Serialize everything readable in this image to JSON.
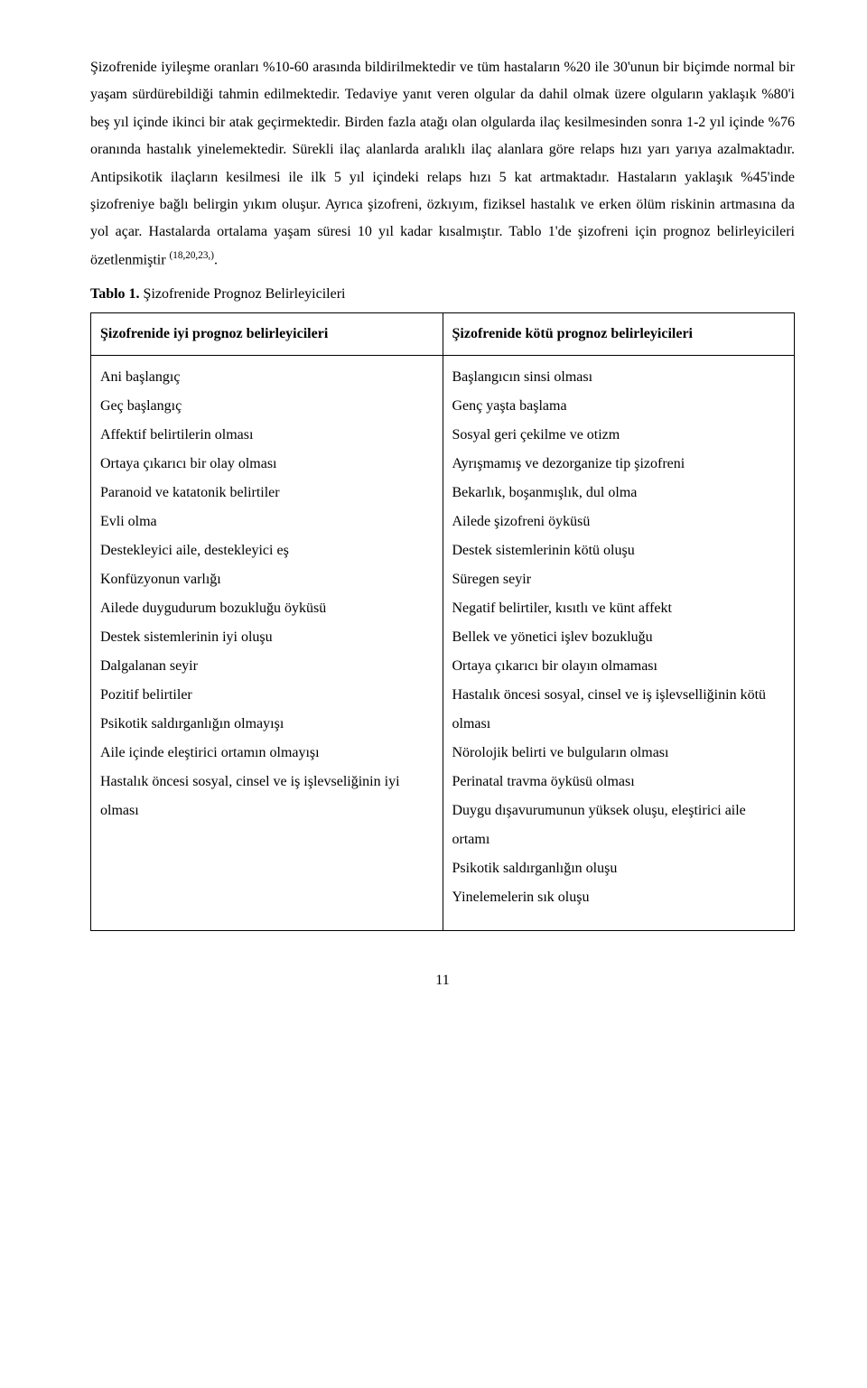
{
  "paragraph": {
    "text_parts": [
      "Şizofrenide iyileşme oranları %10-60 arasında bildirilmektedir ve tüm hastaların %20 ile 30'unun bir biçimde normal bir yaşam sürdürebildiği tahmin edilmektedir. Tedaviye yanıt veren olgular da dahil olmak üzere olguların yaklaşık %80'i beş yıl içinde ikinci bir atak geçirmektedir. Birden fazla atağı olan olgularda ilaç kesilmesinden sonra 1-2 yıl içinde %76 oranında hastalık yinelemektedir. Sürekli ilaç alanlarda aralıklı ilaç alanlara göre relaps hızı yarı yarıya azalmaktadır. Antipsikotik ilaçların kesilmesi ile ilk 5 yıl içindeki relaps hızı 5 kat artmaktadır. Hastaların yaklaşık %45'inde şizofreniye bağlı belirgin yıkım oluşur. Ayrıca şizofreni, özkıyım, fiziksel hastalık ve erken ölüm riskinin artmasına da yol açar. Hastalarda ortalama yaşam süresi 10 yıl kadar kısalmıştır. Tablo 1'de şizofreni için prognoz belirleyicileri özetlenmiştir "
    ],
    "reference": "(18,20,23,)"
  },
  "table": {
    "caption_bold": "Tablo 1.",
    "caption_rest": " Şizofrenide Prognoz Belirleyicileri",
    "headers": {
      "left": "Şizofrenide iyi prognoz belirleyicileri",
      "right": "Şizofrenide kötü prognoz belirleyicileri"
    },
    "left_items": [
      "Ani başlangıç",
      "Geç başlangıç",
      "Affektif belirtilerin olması",
      "Ortaya çıkarıcı bir olay olması",
      "Paranoid ve katatonik belirtiler",
      "Evli olma",
      "Destekleyici aile, destekleyici eş",
      "Konfüzyonun varlığı",
      "Ailede duygudurum bozukluğu öyküsü",
      "Destek sistemlerinin iyi oluşu",
      "Dalgalanan seyir",
      "Pozitif belirtiler",
      "Psikotik saldırganlığın olmayışı",
      "Aile içinde eleştirici ortamın olmayışı",
      "Hastalık öncesi sosyal, cinsel ve iş işlevseliğinin iyi olması"
    ],
    "right_items": [
      "Başlangıcın sinsi olması",
      "Genç yaşta başlama",
      "Sosyal geri çekilme ve otizm",
      "Ayrışmamış ve dezorganize tip şizofreni",
      "Bekarlık, boşanmışlık, dul olma",
      "Ailede şizofreni öyküsü",
      "Destek sistemlerinin kötü oluşu",
      "Süregen seyir",
      "Negatif belirtiler, kısıtlı ve künt affekt",
      "Bellek ve yönetici işlev bozukluğu",
      "Ortaya çıkarıcı bir olayın olmaması",
      "Hastalık öncesi sosyal, cinsel ve iş işlevselliğinin kötü olması",
      "Nörolojik belirti ve bulguların olması",
      "Perinatal travma öyküsü olması",
      "Duygu dışavurumunun yüksek oluşu, eleştirici aile ortamı",
      "Psikotik saldırganlığın oluşu",
      "Yinelemelerin sık oluşu"
    ]
  },
  "page_number": "11"
}
